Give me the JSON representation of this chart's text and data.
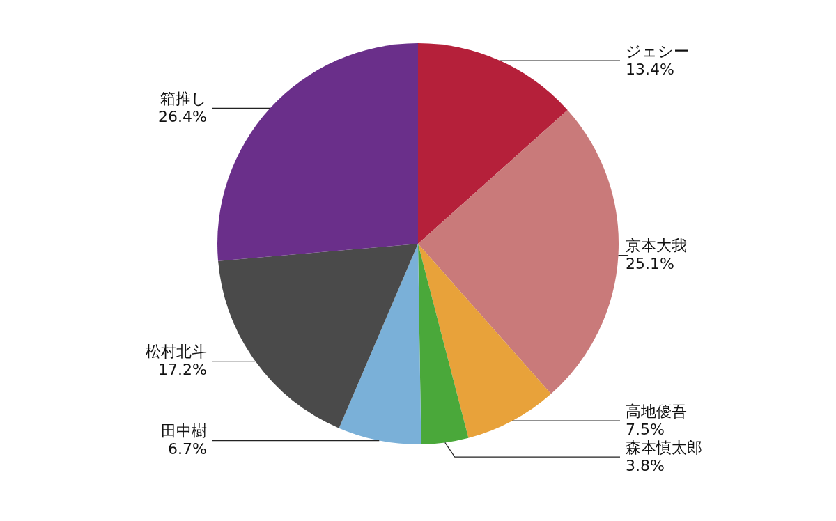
{
  "chart_data": {
    "type": "pie",
    "categories": [
      "ジェシー",
      "京本大我",
      "高地優吾",
      "森本慎太郎",
      "田中樹",
      "松村北斗",
      "箱推し"
    ],
    "values": [
      13.4,
      25.1,
      7.5,
      3.8,
      6.7,
      17.2,
      26.4
    ],
    "value_labels": [
      "13.4%",
      "25.1%",
      "7.5%",
      "3.8%",
      "6.7%",
      "17.2%",
      "26.4%"
    ],
    "colors": [
      "#b5203a",
      "#c97a7a",
      "#e8a23a",
      "#4aa83a",
      "#7ab0d8",
      "#4a4a4a",
      "#6a2f8a"
    ],
    "legend": false
  }
}
